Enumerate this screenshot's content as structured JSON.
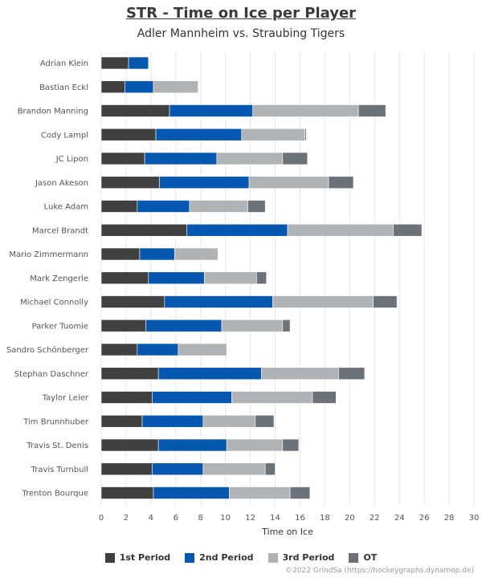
{
  "title": "STR - Time on Ice per Player",
  "subtitle": "Adler Mannheim vs. Straubing Tigers",
  "copyright": "©2022 GrindSa (https://hockeygraphs.dynamop.de)",
  "colors": {
    "p1": "#404040",
    "p2": "#0557b0",
    "p3": "#b0b3b6",
    "ot": "#6b727a",
    "grid": "#e6e6e6",
    "text": "#555555"
  },
  "chart_data": {
    "type": "bar",
    "orientation": "horizontal",
    "stacked": true,
    "xlabel": "Time on Ice",
    "xlim": [
      0,
      30
    ],
    "xticks": [
      0,
      2,
      4,
      6,
      8,
      10,
      12,
      14,
      16,
      18,
      20,
      22,
      24,
      26,
      28,
      30
    ],
    "grid": true,
    "legend_position": "bottom",
    "categories": [
      "Adrian Klein",
      "Bastian Eckl",
      "Brandon Manning",
      "Cody Lampl",
      "JC Lipon",
      "Jason Akeson",
      "Luke Adam",
      "Marcel Brandt",
      "Mario Zimmermann",
      "Mark Zengerle",
      "Michael Connolly",
      "Parker Tuomie",
      "Sandro Schönberger",
      "Stephan Daschner",
      "Taylor Leier",
      "Tim Brunnhuber",
      "Travis St. Denis",
      "Travis Turnbull",
      "Trenton Bourque"
    ],
    "series": [
      {
        "name": "1st Period",
        "values": [
          2.2,
          1.9,
          5.5,
          4.4,
          3.5,
          4.7,
          2.9,
          6.9,
          3.1,
          3.8,
          5.1,
          3.6,
          2.9,
          4.6,
          4.1,
          3.3,
          4.6,
          4.1,
          4.2
        ]
      },
      {
        "name": "2nd Period",
        "values": [
          1.6,
          2.3,
          6.7,
          6.9,
          5.8,
          7.2,
          4.2,
          8.1,
          2.8,
          4.5,
          8.7,
          6.1,
          3.3,
          8.3,
          6.4,
          4.9,
          5.5,
          4.1,
          6.1
        ]
      },
      {
        "name": "3rd Period",
        "values": [
          0,
          3.6,
          8.5,
          5.1,
          5.3,
          6.4,
          4.7,
          8.5,
          3.5,
          4.2,
          8.1,
          4.9,
          3.9,
          6.2,
          6.5,
          4.2,
          4.5,
          5.0,
          4.9
        ]
      },
      {
        "name": "OT",
        "values": [
          0,
          0,
          2.2,
          0.1,
          2.0,
          2.0,
          1.4,
          2.3,
          0,
          0.8,
          1.9,
          0.6,
          0,
          2.1,
          1.9,
          1.5,
          1.3,
          0.8,
          1.6
        ]
      }
    ]
  }
}
